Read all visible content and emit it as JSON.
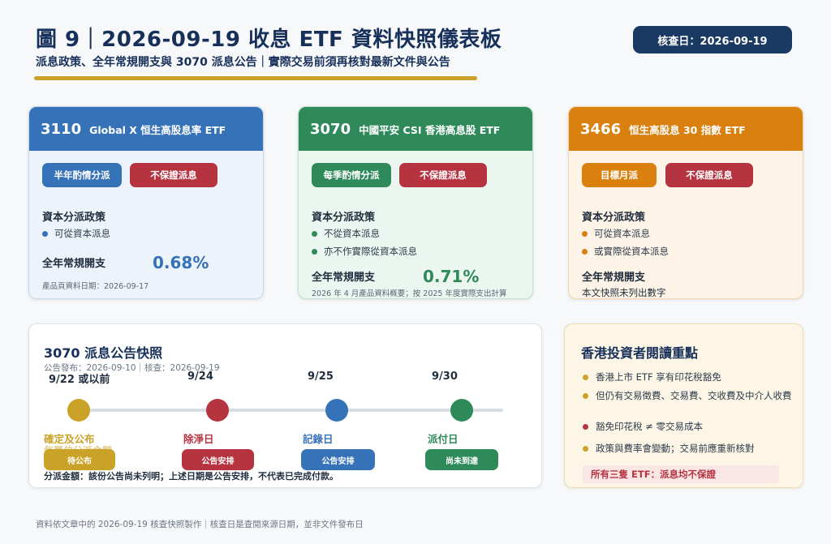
{
  "header": {
    "title": "圖 9｜2026-09-19 收息 ETF 資料快照儀表板",
    "subtitle": "派息政策、全年常規開支與 3070 派息公告｜實際交易前須再核對最新文件與公告",
    "check_date": "核查日：2026-09-19"
  },
  "colors": {
    "blue": "#3572b8",
    "green": "#2f8a5a",
    "orange": "#d9800f",
    "red": "#b63340",
    "gold": "#c9a227",
    "navy": "#1b3a63"
  },
  "cards": [
    {
      "code": "3110",
      "name": "Global X 恒生高股息率 ETF",
      "pill1": "半年酌情分派",
      "pill2": "不保證派息",
      "policy_label": "資本分派政策",
      "bullets": [
        "可從資本派息"
      ],
      "expense_label": "全年常規開支",
      "expense_value": "0.68%",
      "note": "產品頁資料日期：2026-09-17"
    },
    {
      "code": "3070",
      "name": "中國平安 CSI 香港高息股 ETF",
      "pill1": "每季酌情分派",
      "pill2": "不保證派息",
      "policy_label": "資本分派政策",
      "bullets": [
        "不從資本派息",
        "亦不作實際從資本派息"
      ],
      "expense_label": "全年常規開支",
      "expense_value": "0.71%",
      "note": "2026 年 4 月產品資料概要；按 2025 年度實際支出計算"
    },
    {
      "code": "3466",
      "name": "恒生高股息 30 指數 ETF",
      "pill1": "目標月派",
      "pill2": "不保證派息",
      "policy_label": "資本分派政策",
      "bullets": [
        "可從資本派息",
        "或實際從資本派息"
      ],
      "expense_label": "全年常規開支",
      "expense_value": "",
      "note": "本文快照未列出數字"
    }
  ],
  "timeline": {
    "title": "3070 派息公告快照",
    "meta": "公告發布：2026-09-10｜核查：2026-09-19",
    "steps": [
      {
        "date": "9/22 或以前",
        "label": "確定及公布",
        "sub": "每單位分派金額",
        "chip": "待公布"
      },
      {
        "date": "9/24",
        "label": "除淨日",
        "sub": "",
        "chip": "公告安排"
      },
      {
        "date": "9/25",
        "label": "記錄日",
        "sub": "",
        "chip": "公告安排"
      },
      {
        "date": "9/30",
        "label": "派付日",
        "sub": "",
        "chip": "尚未到達"
      }
    ],
    "footnote": "分派金額：該份公告尚未列明；上述日期是公告安排，不代表已完成付款。"
  },
  "reading": {
    "title": "香港投資者閱讀重點",
    "points": [
      "香港上市 ETF 享有印花稅豁免",
      "但仍有交易徵費、交易費、交收費及中介人收費",
      "豁免印花稅 ≠ 零交易成本",
      "政策與費率會變動；交易前應重新核對"
    ],
    "warning": "所有三隻 ETF：派息均不保證"
  },
  "footer": "資料依文章中的 2026-09-19 核查快照製作｜核查日是查閱來源日期，並非文件發布日"
}
